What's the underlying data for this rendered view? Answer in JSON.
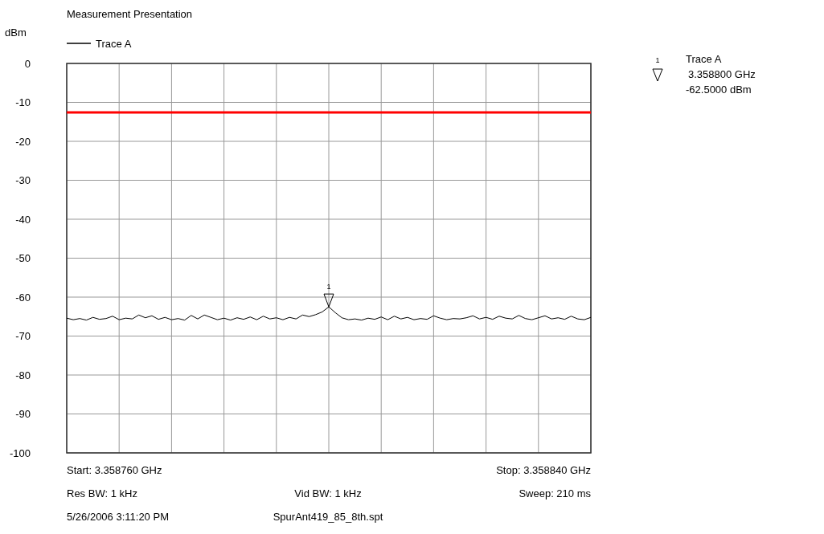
{
  "chart_data": {
    "type": "line",
    "title": "Measurement Presentation",
    "ylabel": "dBm",
    "categories": [
      null,
      null,
      null,
      null,
      null,
      null,
      null,
      null,
      null,
      null,
      null,
      null,
      null,
      null,
      null,
      null,
      null,
      null,
      null,
      null,
      null,
      null,
      null,
      null,
      null,
      null,
      null,
      null,
      null,
      null,
      null,
      null,
      null,
      null,
      null,
      null,
      null,
      null,
      null,
      null,
      null,
      null,
      null,
      null,
      null,
      null,
      null,
      null,
      null,
      null,
      null,
      null,
      null,
      null,
      null,
      null,
      null,
      null,
      null,
      null,
      null,
      null,
      null,
      null,
      null,
      null,
      null,
      null,
      null,
      null,
      null,
      null,
      null,
      null,
      null,
      null,
      null,
      null,
      null,
      null,
      null
    ],
    "series": [
      {
        "name": "Trace A",
        "color": "#000000",
        "values": [
          -65.4,
          -65.8,
          -65.5,
          -65.9,
          -65.2,
          -65.7,
          -65.5,
          -64.9,
          -65.8,
          -65.4,
          -65.6,
          -64.6,
          -65.3,
          -64.8,
          -65.7,
          -65.2,
          -65.8,
          -65.5,
          -65.9,
          -64.7,
          -65.6,
          -64.6,
          -65.2,
          -65.8,
          -65.4,
          -65.9,
          -65.3,
          -65.7,
          -65.1,
          -65.8,
          -64.9,
          -65.6,
          -65.3,
          -65.8,
          -65.2,
          -65.6,
          -64.6,
          -65.0,
          -64.5,
          -63.8,
          -62.5,
          -64.0,
          -65.3,
          -65.8,
          -65.6,
          -65.9,
          -65.4,
          -65.7,
          -65.1,
          -65.8,
          -64.9,
          -65.6,
          -65.2,
          -65.8,
          -65.5,
          -65.7,
          -64.8,
          -65.4,
          -65.8,
          -65.5,
          -65.6,
          -65.3,
          -64.8,
          -65.6,
          -65.2,
          -65.7,
          -64.9,
          -65.4,
          -65.6,
          -64.7,
          -65.5,
          -65.8,
          -65.3,
          -64.8,
          -65.6,
          -65.3,
          -65.7,
          -64.9,
          -65.6,
          -65.8,
          -65.2
        ]
      }
    ],
    "ylim": [
      -100,
      0
    ],
    "yticks": [
      0,
      -10,
      -20,
      -30,
      -40,
      -50,
      -60,
      -70,
      -80,
      -90,
      -100
    ],
    "grid": true,
    "legend": "top left",
    "tick_labels": "y",
    "ref_lines": [
      {
        "axis": "y",
        "value": -12.6,
        "color": "#ff0000"
      }
    ],
    "annotations": [
      {
        "text": "1",
        "y": -62.5
      },
      "Trace A",
      "3.358800 GHz",
      "-62.5000 dBm",
      "Start: 3.358760 GHz",
      "Stop: 3.358840 GHz",
      "Res BW: 1 kHz",
      "Vid BW: 1 kHz",
      "Sweep: 210 ms",
      "5/26/2006 3:11:20 PM",
      "SpurAnt419_85_8th.spt"
    ]
  }
}
